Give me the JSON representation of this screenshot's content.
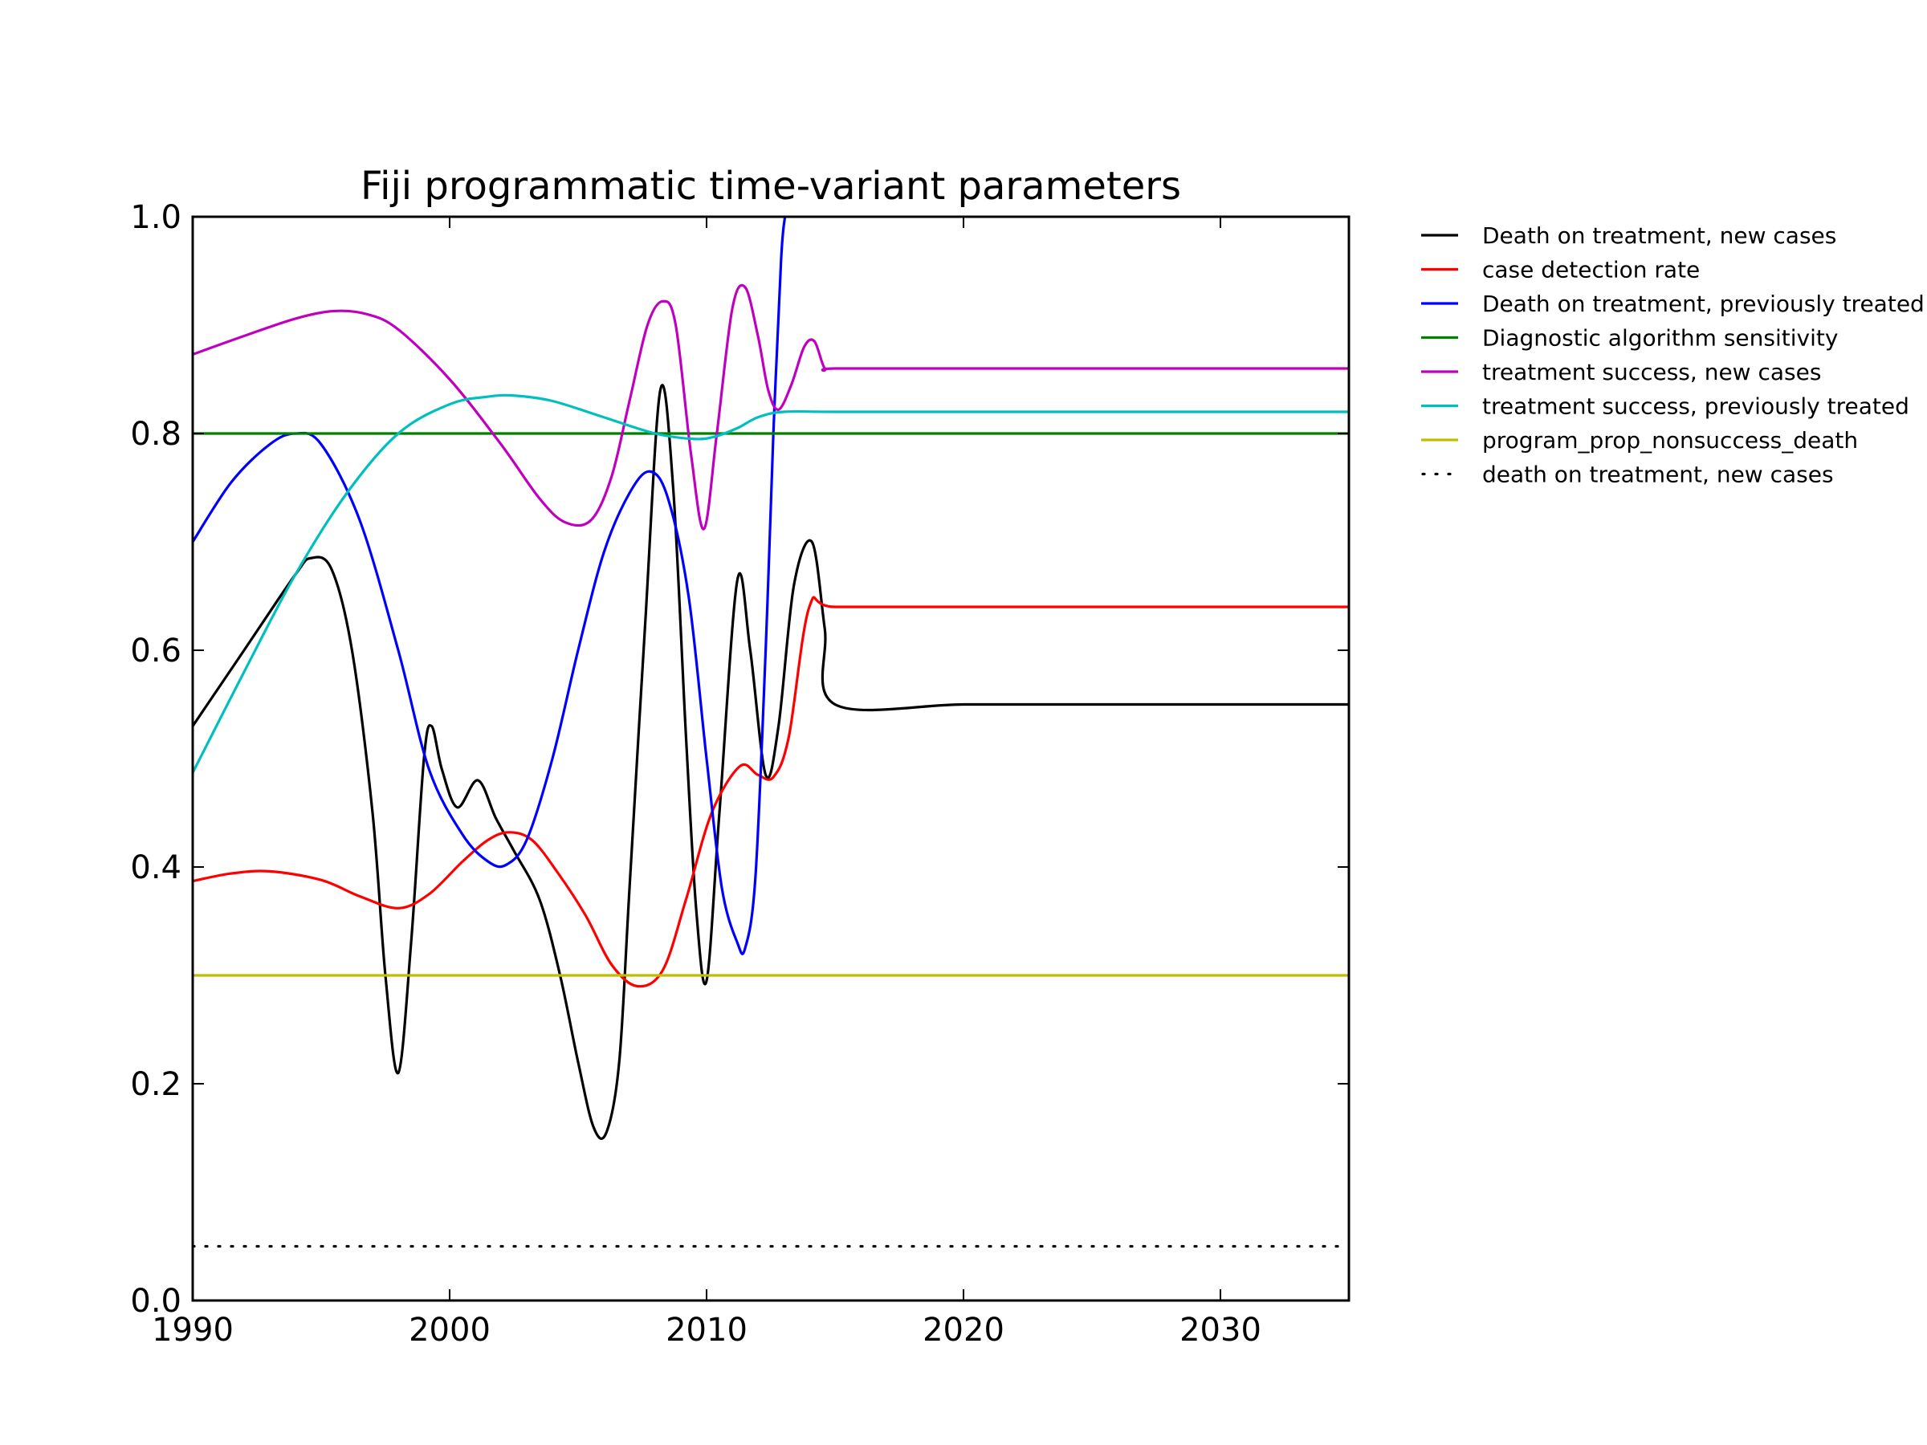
{
  "chart_data": {
    "type": "line",
    "title": "Fiji programmatic time-variant parameters",
    "xlabel": "",
    "ylabel": "",
    "xlim": [
      1990,
      2035
    ],
    "ylim": [
      0.0,
      1.0
    ],
    "xticks": [
      1990,
      2000,
      2010,
      2020,
      2030
    ],
    "xtick_labels": [
      "1990",
      "2000",
      "2010",
      "2020",
      "2030"
    ],
    "yticks": [
      0.0,
      0.2,
      0.4,
      0.6,
      0.8,
      1.0
    ],
    "ytick_labels": [
      "0.0",
      "0.2",
      "0.4",
      "0.6",
      "0.8",
      "1.0"
    ],
    "grid": false,
    "legend_position": "outside-right",
    "series": [
      {
        "name": "Death on treatment, new cases",
        "color": "#000000",
        "style": "solid",
        "x": [
          1990,
          1992,
          1994,
          1994.6,
          1995.4,
          1996.2,
          1997,
          1997.5,
          1998,
          1998.5,
          1999,
          1999.3,
          1999.7,
          2000.3,
          2001.1,
          2001.8,
          2002.5,
          2003.5,
          2004.3,
          2005,
          2005.6,
          2006.1,
          2006.6,
          2007,
          2007.6,
          2008.2,
          2008.7,
          2009.2,
          2009.6,
          2010,
          2010.5,
          2011.2,
          2011.7,
          2012.3,
          2012.8,
          2013.4,
          2014.1,
          2014.6,
          2015,
          2020,
          2025,
          2030,
          2035
        ],
        "y": [
          0.53,
          0.6,
          0.67,
          0.685,
          0.675,
          0.6,
          0.45,
          0.3,
          0.21,
          0.33,
          0.5,
          0.53,
          0.49,
          0.455,
          0.48,
          0.445,
          0.415,
          0.37,
          0.3,
          0.22,
          0.16,
          0.155,
          0.22,
          0.38,
          0.62,
          0.84,
          0.75,
          0.52,
          0.36,
          0.295,
          0.45,
          0.665,
          0.6,
          0.485,
          0.53,
          0.66,
          0.7,
          0.62,
          0.55,
          0.55,
          0.55,
          0.55,
          0.55
        ]
      },
      {
        "name": "case detection rate",
        "color": "#ff0000",
        "style": "solid",
        "x": [
          1990,
          1991.5,
          1993,
          1995,
          1996.5,
          1998,
          1999.2,
          2000.5,
          2001.5,
          2002.3,
          2003.2,
          2004.2,
          2005.3,
          2006.3,
          2007.3,
          2008.3,
          2009.2,
          2010.2,
          2011.3,
          2012,
          2012.6,
          2013.2,
          2014,
          2015,
          2020,
          2025,
          2030,
          2035
        ],
        "y": [
          0.387,
          0.394,
          0.396,
          0.388,
          0.373,
          0.362,
          0.375,
          0.405,
          0.425,
          0.432,
          0.425,
          0.395,
          0.355,
          0.31,
          0.29,
          0.305,
          0.37,
          0.45,
          0.493,
          0.485,
          0.483,
          0.52,
          0.64,
          0.64,
          0.64,
          0.64,
          0.64,
          0.64
        ]
      },
      {
        "name": "Death on treatment, previously treated",
        "color": "#0000ff",
        "style": "solid",
        "x": [
          1990,
          1991.5,
          1993,
          1994,
          1995,
          1996.5,
          1998,
          1999.2,
          2000.5,
          2001.5,
          2002.2,
          2003,
          2004,
          2005,
          2006,
          2007,
          2007.8,
          2008.5,
          2009.3,
          2010,
          2010.6,
          2011.2,
          2011.5,
          2011.9,
          2012.3,
          2012.6,
          2012.9,
          2013.05
        ],
        "y": [
          0.7,
          0.755,
          0.79,
          0.8,
          0.79,
          0.72,
          0.6,
          0.49,
          0.43,
          0.405,
          0.402,
          0.425,
          0.5,
          0.6,
          0.69,
          0.745,
          0.765,
          0.74,
          0.65,
          0.5,
          0.38,
          0.33,
          0.325,
          0.39,
          0.6,
          0.8,
          0.96,
          1.0
        ]
      },
      {
        "name": "Diagnostic algorithm sensitivity",
        "color": "#008000",
        "style": "solid",
        "x": [
          1990,
          2035
        ],
        "y": [
          0.8,
          0.8
        ]
      },
      {
        "name": "treatment success, new cases",
        "color": "#bf00bf",
        "style": "solid",
        "x": [
          1990,
          1992,
          1994,
          1995.5,
          1996.8,
          1998,
          2000,
          2002,
          2003.5,
          2004.5,
          2005.5,
          2006.3,
          2007,
          2007.7,
          2008.3,
          2008.8,
          2009.4,
          2009.9,
          2010.4,
          2011,
          2011.5,
          2012,
          2012.4,
          2012.8,
          2013.3,
          2013.8,
          2014.2,
          2014.6,
          2015,
          2020,
          2025,
          2030,
          2035
        ],
        "y": [
          0.873,
          0.89,
          0.906,
          0.913,
          0.91,
          0.896,
          0.85,
          0.79,
          0.74,
          0.718,
          0.72,
          0.76,
          0.83,
          0.9,
          0.922,
          0.9,
          0.78,
          0.712,
          0.8,
          0.915,
          0.935,
          0.89,
          0.84,
          0.822,
          0.845,
          0.88,
          0.885,
          0.86,
          0.86,
          0.86,
          0.86,
          0.86,
          0.86
        ]
      },
      {
        "name": "treatment success, previously treated",
        "color": "#00bfbf",
        "style": "solid",
        "x": [
          1990,
          1992,
          1994,
          1996,
          1998,
          2000,
          2001.5,
          2002.5,
          2004,
          2006,
          2008,
          2009.5,
          2010.3,
          2011.2,
          2012,
          2013,
          2015,
          2020,
          2025,
          2030,
          2035
        ],
        "y": [
          0.487,
          0.58,
          0.67,
          0.745,
          0.8,
          0.827,
          0.834,
          0.835,
          0.83,
          0.815,
          0.8,
          0.795,
          0.797,
          0.805,
          0.815,
          0.82,
          0.82,
          0.82,
          0.82,
          0.82,
          0.82
        ]
      },
      {
        "name": "program_prop_nonsuccess_death",
        "color": "#bfbf00",
        "style": "solid",
        "x": [
          1990,
          2035
        ],
        "y": [
          0.3,
          0.3
        ]
      },
      {
        "name": "death on treatment, new cases",
        "color": "#000000",
        "style": "dotted",
        "x": [
          1990,
          2035
        ],
        "y": [
          0.05,
          0.05
        ]
      }
    ]
  }
}
